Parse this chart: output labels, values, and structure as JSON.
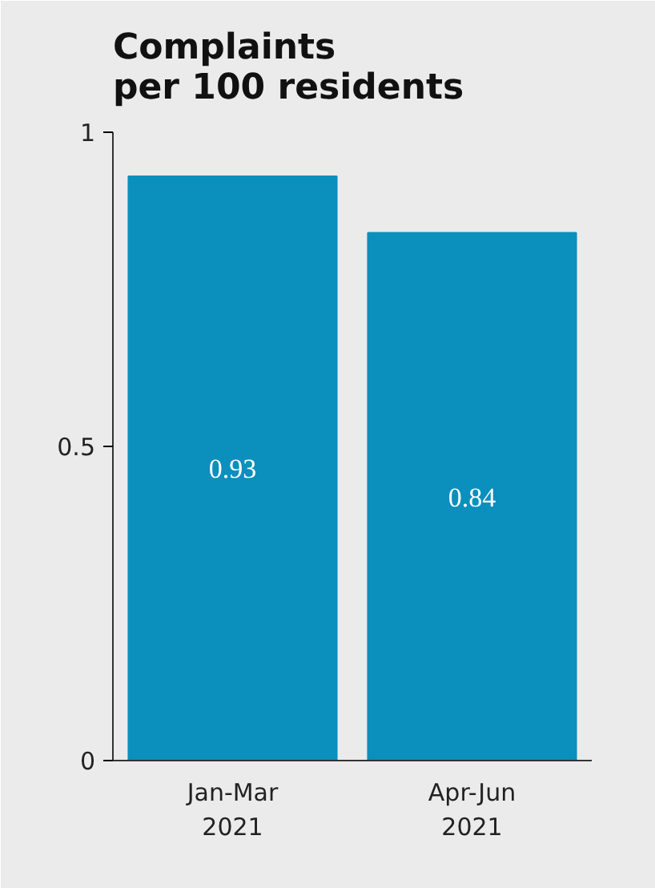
{
  "chart_data": {
    "type": "bar",
    "title": "Complaints\nper 100 residents",
    "categories": [
      "Jan-Mar\n2021",
      "Apr-Jun\n2021"
    ],
    "values": [
      0.93,
      0.84
    ],
    "color": "#0b8fbd",
    "ylim": [
      0,
      1
    ],
    "yticks": [
      0,
      0.5,
      1
    ],
    "grid": false,
    "data_labels": true
  }
}
